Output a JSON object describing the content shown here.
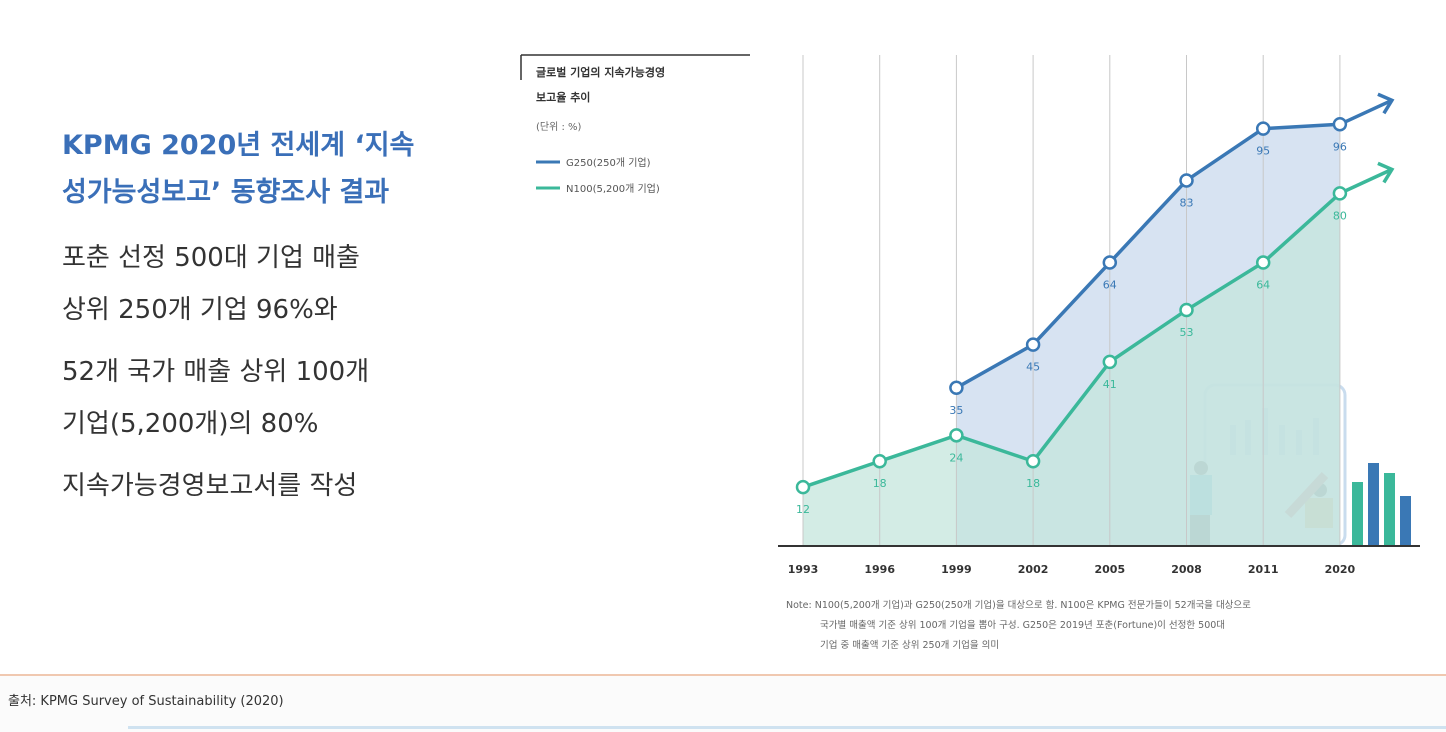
{
  "slide": {
    "heading": [
      "KPMG 2020년 전세계 ‘지속",
      "성가능성보고’ 동향조사 결과"
    ],
    "body": [
      [
        "포춘 선정 500대 기업  매출",
        "상위 250개 기업 96%와"
      ],
      [
        "52개 국가 매출 상위 100개",
        "기업(5,200개)의 80%"
      ],
      [
        "지속가능경영보고서를 작성"
      ]
    ],
    "source": "출처: KPMG Survey of Sustainability (2020)"
  },
  "chart_data": {
    "type": "line",
    "title": [
      "글로벌 기업의 지속가능경영",
      "보고율 추이"
    ],
    "unit": "(단위 : %)",
    "categories": [
      "1993",
      "1996",
      "1999",
      "2002",
      "2005",
      "2008",
      "2011",
      "2020"
    ],
    "series": [
      {
        "name": "G250(250개 기업)",
        "color": "#3a78b5",
        "values": [
          null,
          null,
          35,
          45,
          64,
          83,
          95,
          96
        ]
      },
      {
        "name": "N100(5,200개 기업)",
        "color": "#3bb89a",
        "values": [
          12,
          18,
          24,
          18,
          41,
          53,
          64,
          80
        ]
      }
    ],
    "note": [
      "Note: N100(5,200개 기업)과 G250(250개 기업)을 대상으로 함. N100은 KPMG 전문가들이 52개국을 대상으로",
      "국가별 매출액 기준 상위 100개 기업을 뽑아 구성. G250은 2019년 포춘(Fortune)이 선정한 500대",
      "기업 중 매출액 기준 상위 250개 기업을 의미"
    ]
  }
}
